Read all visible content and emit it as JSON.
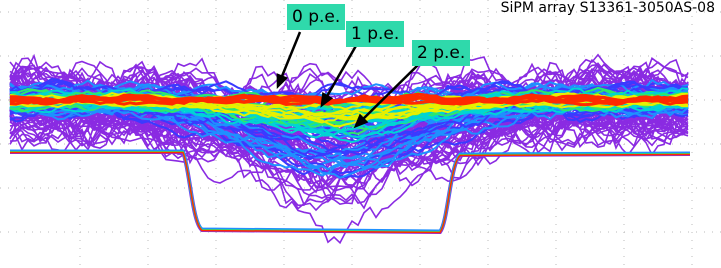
{
  "title": "SiPM array S13361-3050AS-08",
  "labels": [
    "0 p.e.",
    "1 p.e.",
    "2 p.e."
  ]
}
